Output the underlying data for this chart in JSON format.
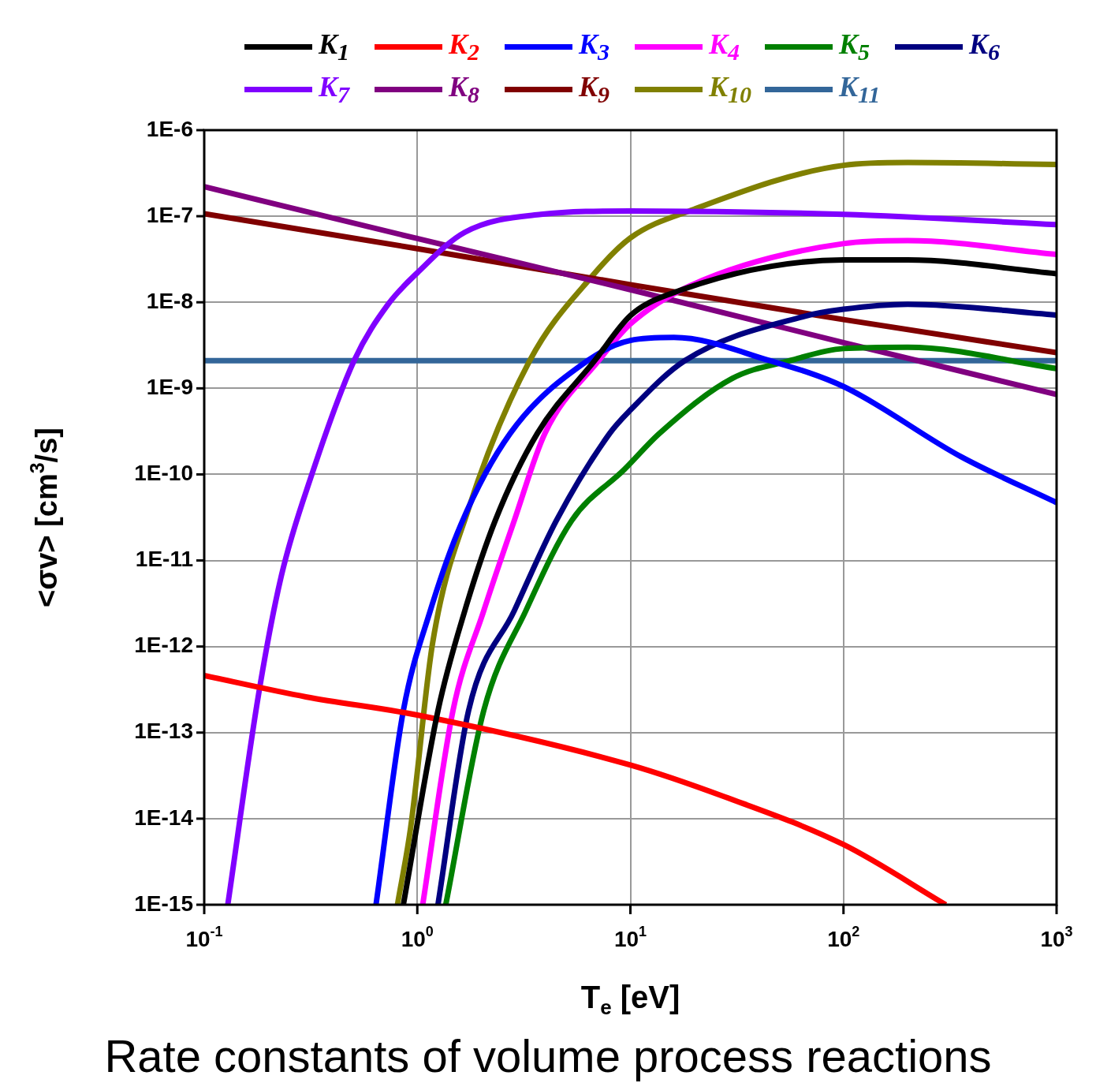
{
  "chart_data": {
    "type": "line",
    "title": "Rate constants of volume process reactions",
    "xlabel": "T$_{e}$ [eV]",
    "ylabel": "<σv> [cm$^{3}$/s]",
    "log": "xy",
    "grid": true,
    "legend": "top",
    "line_style": "solid",
    "xlim": [
      0.1,
      1000
    ],
    "ylim": [
      1e-15,
      1e-06
    ],
    "xticks": [
      {
        "value": 0.1,
        "label": "10$^{-1}$"
      },
      {
        "value": 1,
        "label": "10$^{0}$"
      },
      {
        "value": 10,
        "label": "10$^{1}$"
      },
      {
        "value": 100,
        "label": "10$^{2}$"
      },
      {
        "value": 1000,
        "label": "10$^{3}$"
      }
    ],
    "yticks": [
      {
        "value": 1e-15,
        "label": "1E-15"
      },
      {
        "value": 1e-14,
        "label": "1E-14"
      },
      {
        "value": 1e-13,
        "label": "1E-13"
      },
      {
        "value": 1e-12,
        "label": "1E-12"
      },
      {
        "value": 1e-11,
        "label": "1E-11"
      },
      {
        "value": 1e-10,
        "label": "1E-10"
      },
      {
        "value": 1e-09,
        "label": "1E-9"
      },
      {
        "value": 1e-08,
        "label": "1E-8"
      },
      {
        "value": 1e-07,
        "label": "1E-7"
      },
      {
        "value": 1e-06,
        "label": "1E-6"
      }
    ],
    "series": [
      {
        "name": "K$_{1}$",
        "color": "#000000",
        "x": [
          0.86,
          1.25,
          1.67,
          2.32,
          3.66,
          6.8,
          10,
          14.7,
          100,
          200,
          1000
        ],
        "values": [
          1e-15,
          1.8e-13,
          2.6e-12,
          2.9e-11,
          3e-10,
          2.1e-09,
          7e-09,
          1.2e-08,
          3.1e-08,
          3.1e-08,
          2.15e-08
        ]
      },
      {
        "name": "K$_{2}$",
        "color": "#ff0000",
        "x": [
          0.1,
          0.3,
          1,
          10,
          27.6,
          100,
          302
        ],
        "values": [
          4.6e-13,
          2.6e-13,
          1.6e-13,
          4.2e-14,
          1.8e-14,
          5e-15,
          1e-15
        ]
      },
      {
        "name": "K$_{3}$",
        "color": "#0000ff",
        "x": [
          0.64,
          0.86,
          1.15,
          1.6,
          2.73,
          6.3,
          10,
          16,
          45,
          100,
          357,
          1000
        ],
        "values": [
          1e-15,
          1.8e-13,
          2.6e-12,
          2.6e-11,
          3e-10,
          2.1e-09,
          3.6e-09,
          3.9e-09,
          2.1e-09,
          1.05e-09,
          1.6e-10,
          4.7e-11
        ]
      },
      {
        "name": "K$_{4}$",
        "color": "#ff00ff",
        "x": [
          1.06,
          1.47,
          2.05,
          2.85,
          3.97,
          7.1,
          10,
          19,
          100,
          200,
          1000
        ],
        "values": [
          1e-15,
          1.8e-13,
          2.6e-12,
          2.9e-11,
          3e-10,
          2.1e-09,
          5.6e-09,
          1.55e-08,
          4.8e-08,
          5.2e-08,
          3.6e-08
        ]
      },
      {
        "name": "K$_{5}$",
        "color": "#008000",
        "x": [
          1.36,
          2.05,
          3.23,
          5.3,
          9.4,
          13.7,
          30,
          56,
          100,
          200,
          1000
        ],
        "values": [
          1e-15,
          1.8e-13,
          2.6e-12,
          2.9e-11,
          1.15e-10,
          3e-10,
          1.3e-09,
          2.1e-09,
          2.9e-09,
          3e-09,
          1.7e-09
        ]
      },
      {
        "name": "K$_{6}$",
        "color": "#000080",
        "x": [
          1.25,
          1.74,
          2.85,
          4.49,
          8,
          10,
          18,
          66,
          100,
          200,
          1000
        ],
        "values": [
          1e-15,
          1.8e-13,
          2.6e-12,
          2.9e-11,
          3e-10,
          5.6e-10,
          2.1e-09,
          6.9e-09,
          8.3e-09,
          9.5e-09,
          7.1e-09
        ]
      },
      {
        "name": "K$_{7}$",
        "color": "#8000ff",
        "x": [
          0.129,
          0.18,
          0.23,
          0.32,
          0.505,
          0.73,
          1,
          1.67,
          3.8,
          10,
          100,
          1000
        ],
        "values": [
          1e-15,
          2.8e-13,
          6.6e-12,
          1e-10,
          2.1e-09,
          9.5e-09,
          2.2e-08,
          6.5e-08,
          1.05e-07,
          1.15e-07,
          1.05e-07,
          8e-08
        ]
      },
      {
        "name": "K$_{8}$",
        "color": "#800080",
        "x": [
          0.1,
          1,
          10,
          100,
          1000
        ],
        "values": [
          2.2e-07,
          5.5e-08,
          1.4e-08,
          3.4e-09,
          8.5e-10
        ]
      },
      {
        "name": "K$_{9}$",
        "color": "#800000",
        "x": [
          0.1,
          1,
          10,
          100,
          1000
        ],
        "values": [
          1.07e-07,
          4.2e-08,
          1.6e-08,
          6.3e-09,
          2.6e-09
        ]
      },
      {
        "name": "K$_{10}$",
        "color": "#808000",
        "x": [
          0.807,
          0.93,
          1.18,
          1.74,
          3.37,
          6.6,
          10,
          19.8,
          100,
          200,
          1000
        ],
        "values": [
          1e-15,
          7.8e-15,
          1.1e-12,
          4e-11,
          2.1e-09,
          2e-08,
          5.6e-08,
          1.2e-07,
          3.9e-07,
          4.2e-07,
          4e-07
        ]
      },
      {
        "name": "K$_{11}$",
        "color": "#336699",
        "x": [
          0.1,
          1000
        ],
        "values": [
          2.1e-09,
          2.1e-09
        ]
      }
    ]
  }
}
